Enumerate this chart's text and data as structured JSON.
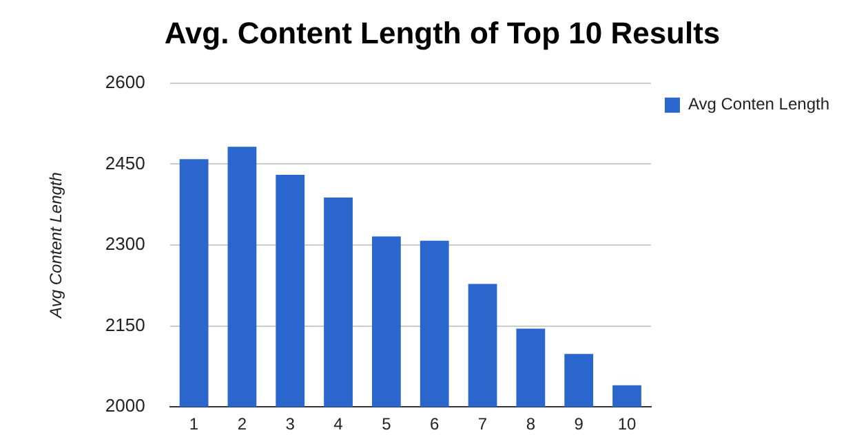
{
  "chart_data": {
    "type": "bar",
    "title": "Avg. Content Length of Top 10 Results",
    "ylabel": "Avg Content Length",
    "categories": [
      "1",
      "2",
      "3",
      "4",
      "5",
      "6",
      "7",
      "8",
      "9",
      "10"
    ],
    "series": [
      {
        "name": "Avg Conten Length",
        "color": "#2a66cc",
        "values": [
          2459,
          2482,
          2430,
          2388,
          2316,
          2308,
          2228,
          2145,
          2098,
          2040
        ]
      }
    ],
    "ylim": [
      2000,
      2600
    ],
    "yticks": [
      2000,
      2150,
      2300,
      2450,
      2600
    ],
    "grid": "y",
    "legend": "right"
  }
}
